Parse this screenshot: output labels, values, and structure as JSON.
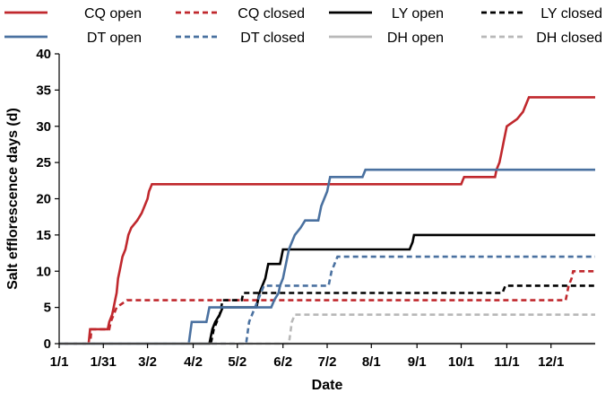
{
  "chart_data": {
    "type": "line",
    "title": "",
    "xlabel": "Date",
    "ylabel": "Salt efflorescence days (d)",
    "x_unit": "day of year (0 = 1/1)",
    "xlim": [
      0,
      364
    ],
    "ylim": [
      0,
      40
    ],
    "grid": false,
    "legend_position": "top",
    "x_ticks": [
      {
        "label": "1/1",
        "day": 0
      },
      {
        "label": "1/31",
        "day": 30
      },
      {
        "label": "3/2",
        "day": 60
      },
      {
        "label": "4/2",
        "day": 91
      },
      {
        "label": "5/2",
        "day": 121
      },
      {
        "label": "6/2",
        "day": 152
      },
      {
        "label": "7/2",
        "day": 182
      },
      {
        "label": "8/1",
        "day": 212
      },
      {
        "label": "9/1",
        "day": 243
      },
      {
        "label": "10/1",
        "day": 273
      },
      {
        "label": "11/1",
        "day": 304
      },
      {
        "label": "12/1",
        "day": 334
      }
    ],
    "y_ticks": [
      0,
      5,
      10,
      15,
      20,
      25,
      30,
      35,
      40
    ],
    "series": [
      {
        "name": "CQ open",
        "color": "#c0282d",
        "dash": "solid",
        "points": [
          [
            0,
            0
          ],
          [
            20,
            0
          ],
          [
            21,
            2
          ],
          [
            33,
            2
          ],
          [
            34,
            3
          ],
          [
            36,
            4
          ],
          [
            37,
            5
          ],
          [
            38,
            6
          ],
          [
            39,
            7
          ],
          [
            40,
            9
          ],
          [
            41,
            10
          ],
          [
            42,
            11
          ],
          [
            43,
            12
          ],
          [
            45,
            13
          ],
          [
            46,
            14
          ],
          [
            47,
            15
          ],
          [
            49,
            16
          ],
          [
            53,
            17
          ],
          [
            56,
            18
          ],
          [
            58,
            19
          ],
          [
            60,
            20
          ],
          [
            61,
            21
          ],
          [
            63,
            22
          ],
          [
            273,
            22
          ],
          [
            274,
            22.5
          ],
          [
            275,
            23
          ],
          [
            296,
            23
          ],
          [
            297,
            24
          ],
          [
            299,
            25
          ],
          [
            300,
            26
          ],
          [
            302,
            28
          ],
          [
            304,
            30
          ],
          [
            311,
            31
          ],
          [
            315,
            32
          ],
          [
            317,
            33
          ],
          [
            319,
            34
          ],
          [
            364,
            34
          ]
        ]
      },
      {
        "name": "CQ closed",
        "color": "#c0282d",
        "dash": "dashed",
        "points": [
          [
            0,
            0
          ],
          [
            21,
            0
          ],
          [
            22,
            2
          ],
          [
            34,
            2
          ],
          [
            35,
            3
          ],
          [
            37,
            4
          ],
          [
            39,
            5
          ],
          [
            46,
            6
          ],
          [
            344,
            6
          ],
          [
            346,
            8
          ],
          [
            348,
            9
          ],
          [
            349,
            10
          ],
          [
            364,
            10
          ]
        ]
      },
      {
        "name": "LY open",
        "color": "#000000",
        "dash": "solid",
        "points": [
          [
            0,
            0
          ],
          [
            102,
            0
          ],
          [
            104,
            2
          ],
          [
            106,
            3
          ],
          [
            109,
            4
          ],
          [
            111,
            5
          ],
          [
            134,
            5
          ],
          [
            135,
            6
          ],
          [
            136,
            7
          ],
          [
            138,
            8
          ],
          [
            140,
            9
          ],
          [
            141,
            10
          ],
          [
            142,
            11
          ],
          [
            150,
            11
          ],
          [
            151,
            12
          ],
          [
            152,
            13
          ],
          [
            238,
            13
          ],
          [
            240,
            14
          ],
          [
            241,
            15
          ],
          [
            364,
            15
          ]
        ]
      },
      {
        "name": "LY closed",
        "color": "#000000",
        "dash": "dashed",
        "points": [
          [
            0,
            0
          ],
          [
            103,
            0
          ],
          [
            105,
            2
          ],
          [
            107,
            3
          ],
          [
            109,
            4
          ],
          [
            111,
            6
          ],
          [
            124,
            6
          ],
          [
            125,
            7
          ],
          [
            301,
            7
          ],
          [
            303,
            8
          ],
          [
            364,
            8
          ]
        ]
      },
      {
        "name": "DT open",
        "color": "#4a71a0",
        "dash": "solid",
        "points": [
          [
            0,
            0
          ],
          [
            88,
            0
          ],
          [
            90,
            3
          ],
          [
            100,
            3
          ],
          [
            102,
            5
          ],
          [
            144,
            5
          ],
          [
            146,
            6
          ],
          [
            149,
            7
          ],
          [
            150,
            8
          ],
          [
            152,
            9
          ],
          [
            154,
            11
          ],
          [
            156,
            13
          ],
          [
            158,
            14
          ],
          [
            160,
            15
          ],
          [
            164,
            16
          ],
          [
            167,
            17
          ],
          [
            176,
            17
          ],
          [
            178,
            19
          ],
          [
            180,
            20
          ],
          [
            182,
            21
          ],
          [
            184,
            23
          ],
          [
            206,
            23
          ],
          [
            208,
            24
          ],
          [
            364,
            24
          ]
        ]
      },
      {
        "name": "DT closed",
        "color": "#4a71a0",
        "dash": "dashed",
        "points": [
          [
            0,
            0
          ],
          [
            127,
            0
          ],
          [
            129,
            3
          ],
          [
            131,
            4
          ],
          [
            133,
            5
          ],
          [
            135,
            6
          ],
          [
            137,
            7
          ],
          [
            139,
            8
          ],
          [
            183,
            8
          ],
          [
            185,
            10
          ],
          [
            187,
            11
          ],
          [
            189,
            12
          ],
          [
            364,
            12
          ]
        ]
      },
      {
        "name": "DH open",
        "color": "#b8b8b8",
        "dash": "solid",
        "points": [
          [
            0,
            0
          ],
          [
            364,
            0
          ]
        ]
      },
      {
        "name": "DH closed",
        "color": "#b8b8b8",
        "dash": "dashed",
        "points": [
          [
            0,
            0
          ],
          [
            156,
            0
          ],
          [
            158,
            3
          ],
          [
            160,
            4
          ],
          [
            364,
            4
          ]
        ]
      }
    ]
  }
}
